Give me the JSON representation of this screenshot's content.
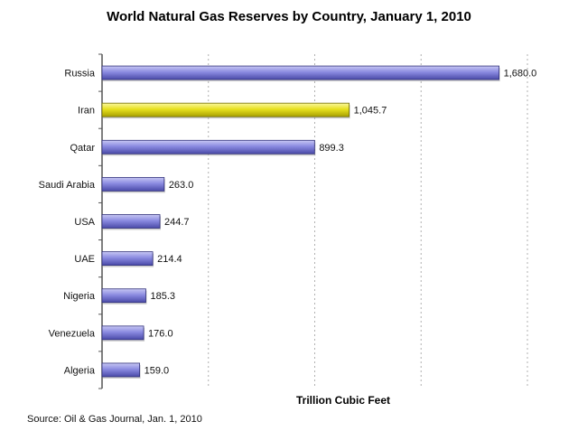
{
  "chart_data": {
    "type": "bar",
    "orientation": "horizontal",
    "title": "World Natural Gas Reserves by Country, January 1, 2010",
    "xlabel": "Trillion Cubic Feet",
    "ylabel": "",
    "source": "Source: Oil & Gas Journal, Jan. 1, 2010",
    "categories": [
      "Russia",
      "Iran",
      "Qatar",
      "Saudi Arabia",
      "USA",
      "UAE",
      "Nigeria",
      "Venezuela",
      "Algeria"
    ],
    "values": [
      1680.0,
      1045.7,
      899.3,
      263.0,
      244.7,
      214.4,
      185.3,
      176.0,
      159.0
    ],
    "value_labels": [
      "1,680.0",
      "1,045.7",
      "899.3",
      "263.0",
      "244.7",
      "214.4",
      "185.3",
      "176.0",
      "159.0"
    ],
    "highlighted_category": "Iran",
    "xlim": [
      0,
      1800
    ],
    "grid": "vertical dashed",
    "colors": {
      "bar": "#7b7bd9",
      "highlight": "#e6e01e"
    }
  }
}
